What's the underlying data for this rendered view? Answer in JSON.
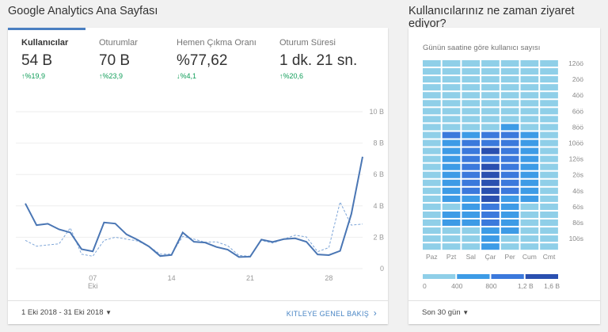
{
  "left": {
    "title": "Google Analytics Ana Sayfası",
    "metrics": [
      {
        "label": "Kullanıcılar",
        "value": "54 B",
        "change": "%19,9",
        "direction": "up"
      },
      {
        "label": "Oturumlar",
        "value": "70 B",
        "change": "%23,9",
        "direction": "up"
      },
      {
        "label": "Hemen Çıkma Oranı",
        "value": "%77,62",
        "change": "%4,1",
        "direction": "down"
      },
      {
        "label": "Oturum Süresi",
        "value": "1 dk. 21 sn.",
        "change": "%20,6",
        "direction": "up"
      }
    ],
    "date_range": "1 Eki 2018 - 31 Eki 2018",
    "link": "KITLEYE GENEL BAKIŞ"
  },
  "right": {
    "title": "Kullanıcılarınız ne zaman ziyaret ediyor?",
    "footer": "Son 30 gün"
  },
  "chart_data": [
    {
      "type": "line",
      "ylim": [
        0,
        10000
      ],
      "y_ticks": [
        "0",
        "2 B",
        "4 B",
        "6 B",
        "8 B",
        "10 B"
      ],
      "x_ticks": [
        "07",
        "14",
        "21",
        "28"
      ],
      "x_sublabel": "Eki",
      "grid": true,
      "x": [
        1,
        2,
        3,
        4,
        5,
        6,
        7,
        8,
        9,
        10,
        11,
        12,
        13,
        14,
        15,
        16,
        17,
        18,
        19,
        20,
        21,
        22,
        23,
        24,
        25,
        26,
        27,
        28,
        29,
        30,
        31
      ],
      "series": [
        {
          "style": "solid",
          "color": "#4a76b4",
          "values": [
            4150,
            2770,
            2860,
            2500,
            2300,
            1240,
            1100,
            2940,
            2870,
            2180,
            1830,
            1410,
            800,
            870,
            2300,
            1710,
            1660,
            1380,
            1210,
            740,
            760,
            1850,
            1700,
            1880,
            1930,
            1710,
            900,
            860,
            1130,
            3480,
            7130
          ]
        },
        {
          "style": "dashed",
          "color": "#7ea6d8",
          "values": [
            1800,
            1430,
            1510,
            1580,
            2590,
            920,
            790,
            1800,
            2000,
            1880,
            1760,
            1410,
            920,
            920,
            2050,
            1880,
            1680,
            1710,
            1460,
            840,
            790,
            1800,
            1630,
            1880,
            2130,
            2020,
            1080,
            1340,
            4240,
            2770,
            2840
          ]
        }
      ]
    },
    {
      "type": "heatmap",
      "title": "Günün saatine göre kullanıcı sayısı",
      "columns": [
        "Paz",
        "Pzt",
        "Sal",
        "Çar",
        "Per",
        "Cum",
        "Cmt"
      ],
      "row_labels": [
        "12öö",
        "",
        "2öö",
        "",
        "4öö",
        "",
        "6öö",
        "",
        "8öö",
        "",
        "10öö",
        "",
        "12ös",
        "",
        "2ös",
        "",
        "4ös",
        "",
        "6ös",
        "",
        "8ös",
        "",
        "10ös",
        ""
      ],
      "legend_ticks": [
        "0",
        "400",
        "800",
        "1,2 B",
        "1,6 B"
      ],
      "colors": [
        "#8fcfe8",
        "#3d9be6",
        "#3b79dc",
        "#2a50b0"
      ],
      "levels": [
        [
          0,
          0,
          0,
          0,
          0,
          0,
          0
        ],
        [
          0,
          0,
          0,
          0,
          0,
          0,
          0
        ],
        [
          0,
          0,
          0,
          0,
          0,
          0,
          0
        ],
        [
          0,
          0,
          0,
          0,
          0,
          0,
          0
        ],
        [
          0,
          0,
          0,
          0,
          0,
          0,
          0
        ],
        [
          0,
          0,
          0,
          0,
          0,
          0,
          0
        ],
        [
          0,
          0,
          0,
          0,
          0,
          0,
          0
        ],
        [
          0,
          0,
          0,
          0,
          0,
          0,
          0
        ],
        [
          0,
          0,
          0,
          0,
          1,
          0,
          0
        ],
        [
          0,
          2,
          1,
          2,
          2,
          1,
          0
        ],
        [
          0,
          1,
          2,
          2,
          2,
          1,
          0
        ],
        [
          0,
          1,
          2,
          3,
          2,
          1,
          0
        ],
        [
          0,
          1,
          2,
          2,
          2,
          1,
          0
        ],
        [
          0,
          1,
          2,
          3,
          2,
          1,
          0
        ],
        [
          0,
          1,
          2,
          3,
          2,
          1,
          0
        ],
        [
          0,
          1,
          2,
          3,
          2,
          1,
          0
        ],
        [
          0,
          1,
          2,
          3,
          2,
          1,
          0
        ],
        [
          0,
          1,
          1,
          3,
          1,
          1,
          0
        ],
        [
          0,
          0,
          1,
          2,
          1,
          0,
          0
        ],
        [
          0,
          1,
          1,
          2,
          1,
          0,
          0
        ],
        [
          0,
          1,
          1,
          2,
          1,
          0,
          0
        ],
        [
          0,
          0,
          0,
          1,
          1,
          0,
          0
        ],
        [
          0,
          0,
          0,
          1,
          0,
          0,
          0
        ],
        [
          0,
          0,
          0,
          1,
          0,
          0,
          0
        ]
      ]
    }
  ]
}
